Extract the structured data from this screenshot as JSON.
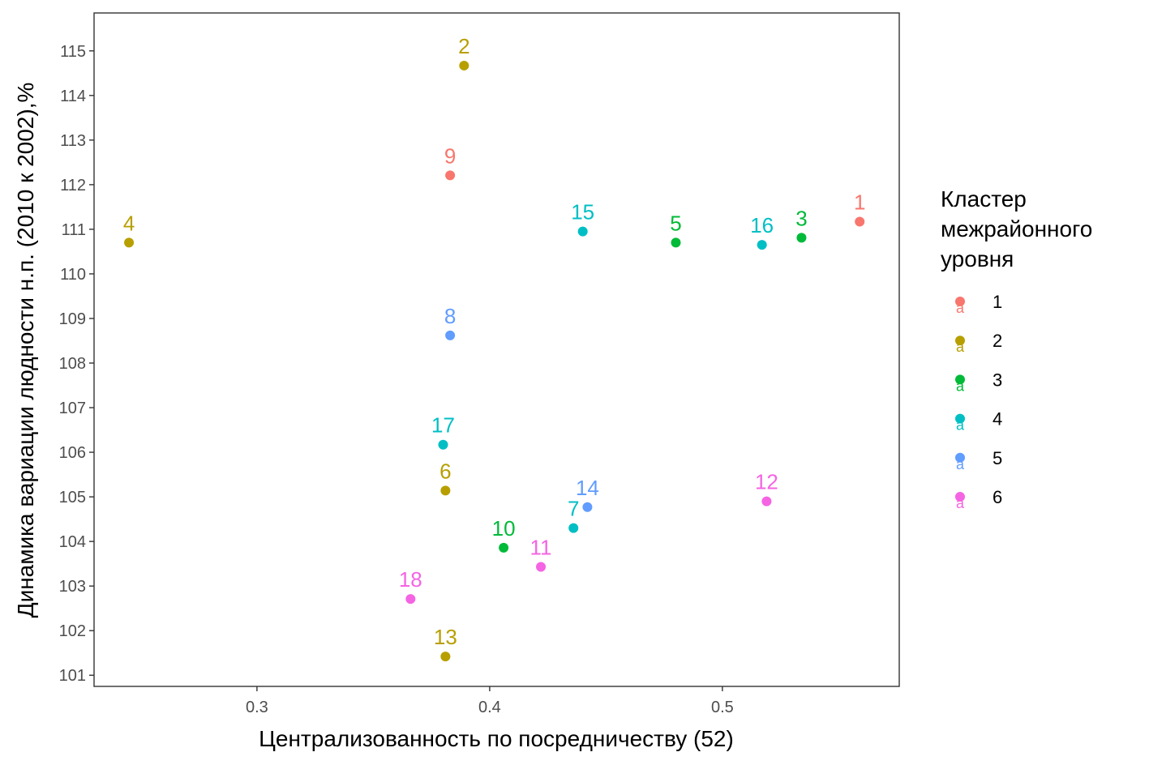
{
  "chart_data": {
    "type": "scatter",
    "xlabel": "Централизованность по посредничеству (52)",
    "ylabel": "Динамика вариации людности н.п. (2010 к 2002),%",
    "xlim": [
      0.23,
      0.576
    ],
    "ylim": [
      100.75,
      115.85
    ],
    "x_ticks": [
      0.3,
      0.4,
      0.5
    ],
    "x_tick_labels": [
      "0.3",
      "0.4",
      "0.5"
    ],
    "y_ticks": [
      101,
      102,
      103,
      104,
      105,
      106,
      107,
      108,
      109,
      110,
      111,
      112,
      113,
      114,
      115
    ],
    "y_tick_labels": [
      "101",
      "102",
      "103",
      "104",
      "105",
      "106",
      "107",
      "108",
      "109",
      "110",
      "111",
      "112",
      "113",
      "114",
      "115"
    ],
    "grid": false,
    "legend": {
      "title_lines": [
        "Кластер",
        "межрайонного",
        "уровня"
      ],
      "placement": "right",
      "entries": [
        {
          "label": "1",
          "color": "#F8766D"
        },
        {
          "label": "2",
          "color": "#B79F00"
        },
        {
          "label": "3",
          "color": "#00BA38"
        },
        {
          "label": "4",
          "color": "#00BFC4"
        },
        {
          "label": "5",
          "color": "#619CFF"
        },
        {
          "label": "6",
          "color": "#F564E3"
        }
      ]
    },
    "points": [
      {
        "label": "1",
        "x": 0.559,
        "y": 111.17,
        "cluster": "1"
      },
      {
        "label": "2",
        "x": 0.389,
        "y": 114.67,
        "cluster": "2"
      },
      {
        "label": "3",
        "x": 0.534,
        "y": 110.81,
        "cluster": "3"
      },
      {
        "label": "4",
        "x": 0.245,
        "y": 110.7,
        "cluster": "2"
      },
      {
        "label": "5",
        "x": 0.48,
        "y": 110.7,
        "cluster": "3"
      },
      {
        "label": "6",
        "x": 0.381,
        "y": 105.14,
        "cluster": "2"
      },
      {
        "label": "7",
        "x": 0.436,
        "y": 104.3,
        "cluster": "4"
      },
      {
        "label": "8",
        "x": 0.383,
        "y": 108.62,
        "cluster": "5"
      },
      {
        "label": "9",
        "x": 0.383,
        "y": 112.21,
        "cluster": "1"
      },
      {
        "label": "10",
        "x": 0.406,
        "y": 103.86,
        "cluster": "3"
      },
      {
        "label": "11",
        "x": 0.422,
        "y": 103.43,
        "cluster": "6"
      },
      {
        "label": "12",
        "x": 0.519,
        "y": 104.9,
        "cluster": "6"
      },
      {
        "label": "13",
        "x": 0.381,
        "y": 101.42,
        "cluster": "2"
      },
      {
        "label": "14",
        "x": 0.442,
        "y": 104.77,
        "cluster": "5"
      },
      {
        "label": "15",
        "x": 0.44,
        "y": 110.95,
        "cluster": "4"
      },
      {
        "label": "16",
        "x": 0.517,
        "y": 110.65,
        "cluster": "4"
      },
      {
        "label": "17",
        "x": 0.38,
        "y": 106.17,
        "cluster": "4"
      },
      {
        "label": "18",
        "x": 0.366,
        "y": 102.71,
        "cluster": "6"
      }
    ]
  }
}
